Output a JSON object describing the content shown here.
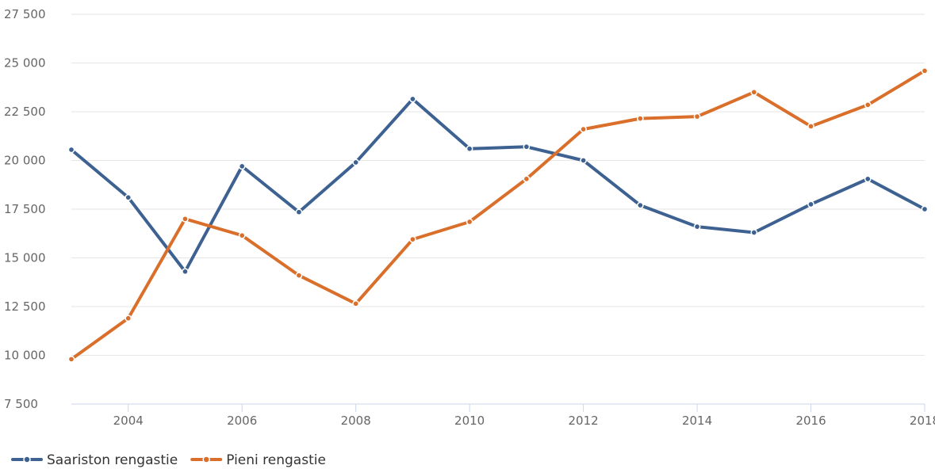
{
  "chart_data": {
    "type": "line",
    "x": [
      2003,
      2004,
      2005,
      2006,
      2007,
      2008,
      2009,
      2010,
      2011,
      2012,
      2013,
      2014,
      2015,
      2016,
      2017,
      2018
    ],
    "x_ticks": [
      2004,
      2006,
      2008,
      2010,
      2012,
      2014,
      2016,
      2018
    ],
    "x_tick_labels": [
      "2004",
      "2006",
      "2008",
      "2010",
      "2012",
      "2014",
      "2016",
      "2018"
    ],
    "xlim": [
      2003,
      2018
    ],
    "ylim": [
      7500,
      27500
    ],
    "y_ticks": [
      7500,
      10000,
      12500,
      15000,
      17500,
      20000,
      22500,
      25000,
      27500
    ],
    "y_tick_labels": [
      "7 500",
      "10 000",
      "12 500",
      "15 000",
      "17 500",
      "20 000",
      "22 500",
      "25 000",
      "27 500"
    ],
    "grid": true,
    "legend_position": "bottom-left",
    "series": [
      {
        "name": "Saariston rengastie",
        "color": "#3d6191",
        "values": [
          20550,
          18100,
          14300,
          19700,
          17350,
          19900,
          23150,
          20600,
          20700,
          20000,
          17700,
          16600,
          16300,
          17750,
          19050,
          17500
        ]
      },
      {
        "name": "Pieni rengastie",
        "color": "#d96f2a",
        "values": [
          9800,
          11900,
          17000,
          16150,
          14100,
          12650,
          15950,
          16850,
          19050,
          21600,
          22150,
          22250,
          23500,
          21750,
          22850,
          24600
        ]
      }
    ]
  }
}
